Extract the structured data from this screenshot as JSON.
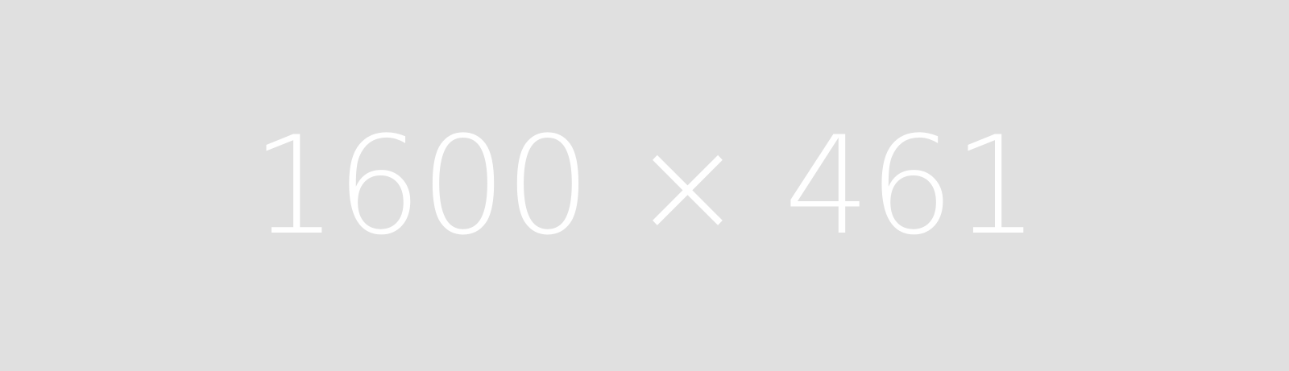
{
  "placeholder": {
    "label": "1600 × 461",
    "background_color": "#e0e0e0",
    "text_color": "#ffffff"
  }
}
